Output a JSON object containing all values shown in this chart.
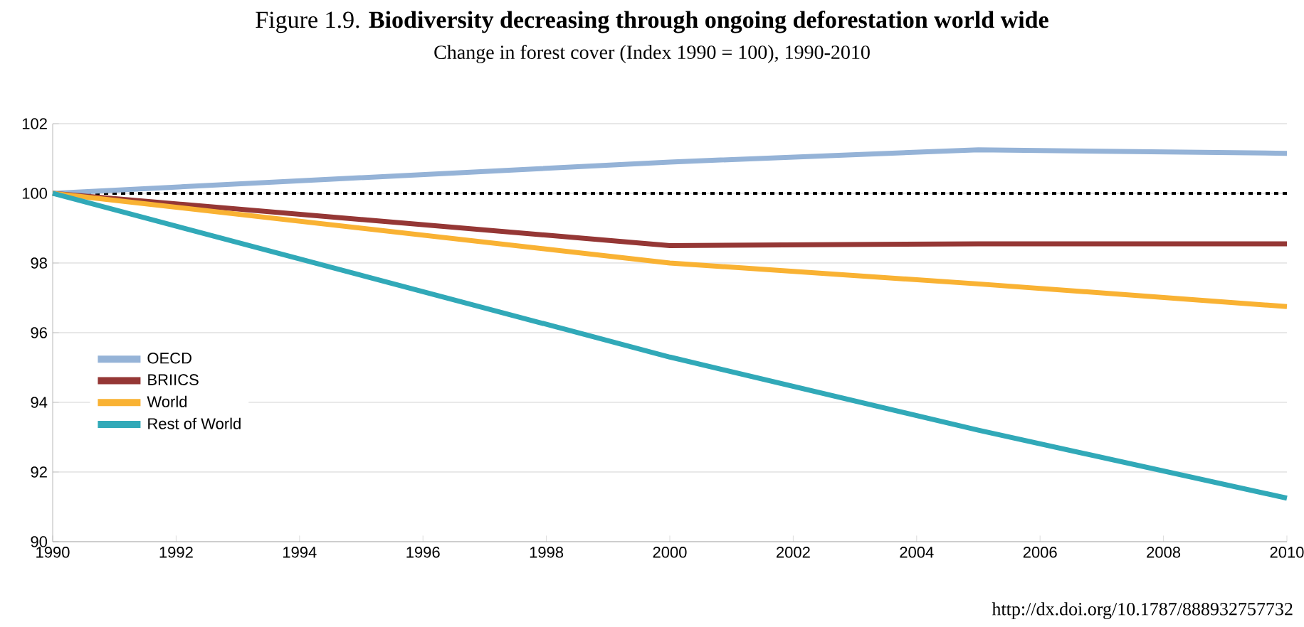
{
  "chart_data": {
    "type": "line",
    "title": "Figure 1.9. **Biodiversity decreasing through ongoing deforestation world wide**",
    "subtitle": "Change in forest cover (Index 1990 = 100), 1990-2010",
    "x": [
      1990,
      2000,
      2005,
      2010
    ],
    "series": [
      {
        "name": "OECD",
        "color": "#95b3d7",
        "values": [
          100,
          100.9,
          101.25,
          101.15
        ]
      },
      {
        "name": "BRIICS",
        "color": "#953735",
        "values": [
          100,
          98.5,
          98.55,
          98.55
        ]
      },
      {
        "name": "World",
        "color": "#f9b233",
        "values": [
          100,
          98.0,
          97.4,
          96.75
        ]
      },
      {
        "name": "Rest of World",
        "color": "#31a9b8",
        "values": [
          100,
          95.3,
          93.2,
          91.25
        ]
      }
    ],
    "xlim": [
      1990,
      2010
    ],
    "xticks": [
      1990,
      1992,
      1994,
      1996,
      1998,
      2000,
      2002,
      2004,
      2006,
      2008,
      2010
    ],
    "ylim": [
      90,
      102
    ],
    "yticks": [
      90,
      92,
      94,
      96,
      98,
      100,
      102
    ],
    "grid": "y",
    "legend": "left",
    "marker": "none",
    "line_style": "solid",
    "ref_lines": [
      {
        "axis": "y",
        "value": 100,
        "color": "#000000",
        "line_style": "dashed"
      }
    ],
    "annotations": [
      "http://dx.doi.org/10.1787/888932757732"
    ]
  }
}
